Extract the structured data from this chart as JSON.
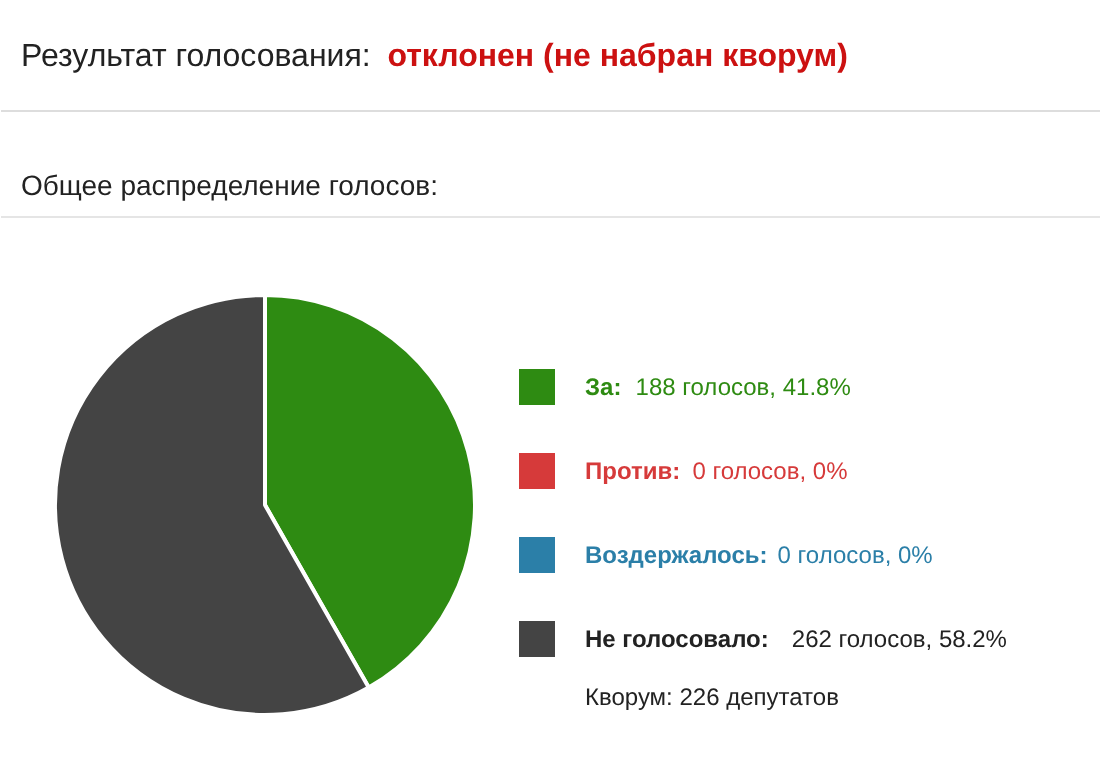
{
  "chart_data": {
    "type": "pie",
    "title": "Результат голосования: отклонен (не набран кворум)",
    "subtitle": "Общее распределение голосов:",
    "categories": [
      "За: 188 голосов, 41.8%",
      "Против: 0 голосов, 0%",
      "Воздержалось: 0 голосов, 0%",
      "Не голосовало: 262 голосов, 58.2%"
    ],
    "values": [
      188,
      0,
      0,
      262
    ],
    "colors": [
      "#2e8b12",
      "#d63a3a",
      "#2b7fa8",
      "#444444"
    ],
    "legend": "right",
    "annotations": [
      "Кворум: 226 депутатов"
    ]
  }
}
